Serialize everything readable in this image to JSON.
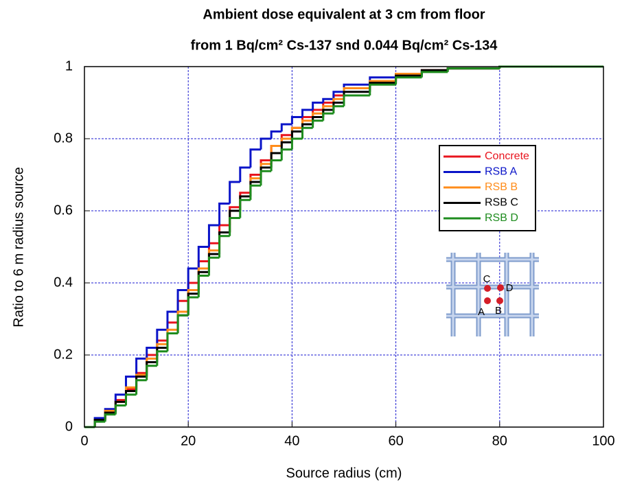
{
  "chart_data": {
    "type": "step",
    "title": [
      "Ambient dose equivalent at 3 cm from floor",
      "from 1 Bq/cm² Cs-137 snd 0.044 Bq/cm² Cs-134"
    ],
    "x_label": "Source radius (cm)",
    "y_label": "Ratio to 6 m radius source",
    "x": [
      0,
      2,
      4,
      6,
      8,
      10,
      12,
      14,
      16,
      18,
      20,
      22,
      24,
      26,
      28,
      30,
      32,
      34,
      36,
      38,
      40,
      42,
      44,
      46,
      48,
      50,
      55,
      60,
      65,
      70,
      80,
      90,
      100
    ],
    "series": [
      {
        "name": "Concrete",
        "color": "#e8141e",
        "values": [
          0,
          0.02,
          0.045,
          0.075,
          0.105,
          0.15,
          0.2,
          0.24,
          0.29,
          0.35,
          0.4,
          0.46,
          0.51,
          0.56,
          0.61,
          0.65,
          0.7,
          0.74,
          0.78,
          0.81,
          0.83,
          0.86,
          0.88,
          0.9,
          0.92,
          0.94,
          0.96,
          0.98,
          0.99,
          0.995,
          1,
          1,
          1
        ]
      },
      {
        "name": "RSB A",
        "color": "#0a14c8",
        "values": [
          0,
          0.025,
          0.05,
          0.09,
          0.14,
          0.19,
          0.22,
          0.27,
          0.32,
          0.38,
          0.44,
          0.5,
          0.56,
          0.62,
          0.68,
          0.72,
          0.77,
          0.8,
          0.82,
          0.84,
          0.86,
          0.88,
          0.9,
          0.91,
          0.93,
          0.95,
          0.97,
          0.98,
          0.99,
          0.995,
          1,
          1,
          1
        ]
      },
      {
        "name": "RSB B",
        "color": "#ff8c1a",
        "values": [
          0,
          0.02,
          0.045,
          0.07,
          0.11,
          0.145,
          0.19,
          0.23,
          0.27,
          0.32,
          0.38,
          0.44,
          0.49,
          0.54,
          0.6,
          0.64,
          0.69,
          0.73,
          0.78,
          0.8,
          0.83,
          0.85,
          0.87,
          0.89,
          0.91,
          0.94,
          0.96,
          0.98,
          0.99,
          0.995,
          1,
          1,
          1
        ]
      },
      {
        "name": "RSB C",
        "color": "#000000",
        "values": [
          0,
          0.02,
          0.04,
          0.07,
          0.1,
          0.14,
          0.18,
          0.22,
          0.26,
          0.31,
          0.37,
          0.43,
          0.48,
          0.54,
          0.6,
          0.64,
          0.68,
          0.72,
          0.76,
          0.79,
          0.82,
          0.84,
          0.86,
          0.88,
          0.9,
          0.93,
          0.955,
          0.975,
          0.99,
          0.995,
          1,
          1,
          1
        ]
      },
      {
        "name": "RSB D",
        "color": "#1e8c1e",
        "values": [
          0,
          0.015,
          0.035,
          0.06,
          0.09,
          0.13,
          0.17,
          0.21,
          0.26,
          0.31,
          0.36,
          0.42,
          0.47,
          0.53,
          0.58,
          0.63,
          0.67,
          0.71,
          0.74,
          0.77,
          0.8,
          0.83,
          0.85,
          0.87,
          0.89,
          0.92,
          0.95,
          0.97,
          0.985,
          0.995,
          1,
          1,
          1
        ]
      }
    ],
    "xlim": [
      0,
      100
    ],
    "xticks": [
      0,
      20,
      40,
      60,
      80,
      100
    ],
    "ylim": [
      0,
      1
    ],
    "yticks": [
      0,
      0.2,
      0.4,
      0.6,
      0.8,
      1
    ],
    "grid": true,
    "grid_color": "#1a1ad0",
    "legend": "right",
    "annotations": [
      "C",
      "D",
      "A",
      "B"
    ]
  }
}
